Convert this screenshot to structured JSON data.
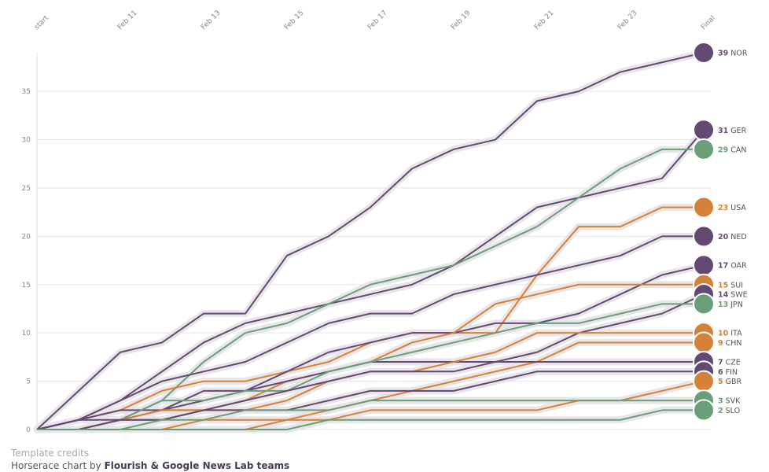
{
  "chart_data": {
    "type": "line",
    "categories": [
      "start",
      null,
      "Feb 11",
      null,
      "Feb 13",
      null,
      "Feb 15",
      null,
      "Feb 17",
      null,
      "Feb 19",
      null,
      "Feb 21",
      null,
      "Feb 23",
      null,
      "Final"
    ],
    "ylim": [
      0,
      39
    ],
    "yticks": [
      0,
      5,
      10,
      15,
      20,
      25,
      30,
      35
    ],
    "grid": true,
    "series": [
      {
        "name": "NOR",
        "color": "#634a73",
        "values": [
          0,
          4,
          8,
          9,
          12,
          12,
          18,
          20,
          23,
          27,
          29,
          30,
          34,
          35,
          37,
          38,
          39
        ]
      },
      {
        "name": "GER",
        "color": "#634a73",
        "values": [
          0,
          1,
          3,
          6,
          9,
          11,
          12,
          13,
          14,
          15,
          17,
          20,
          23,
          24,
          25,
          26,
          31
        ]
      },
      {
        "name": "CAN",
        "color": "#6a9e78",
        "values": [
          0,
          0,
          1,
          3,
          7,
          10,
          11,
          13,
          15,
          16,
          17,
          19,
          21,
          24,
          27,
          29,
          29
        ]
      },
      {
        "name": "USA",
        "color": "#d4813a",
        "values": [
          0,
          1,
          2,
          4,
          5,
          5,
          6,
          7,
          9,
          10,
          10,
          10,
          16,
          21,
          21,
          23,
          23
        ]
      },
      {
        "name": "NED",
        "color": "#634a73",
        "values": [
          0,
          1,
          3,
          5,
          6,
          7,
          9,
          11,
          12,
          12,
          14,
          15,
          16,
          17,
          18,
          20,
          20
        ]
      },
      {
        "name": "OAR",
        "color": "#634a73",
        "values": [
          0,
          0,
          1,
          2,
          3,
          4,
          6,
          8,
          9,
          10,
          10,
          11,
          11,
          12,
          14,
          16,
          17
        ]
      },
      {
        "name": "SUI",
        "color": "#d4813a",
        "values": [
          0,
          0,
          1,
          2,
          2,
          3,
          5,
          6,
          7,
          9,
          10,
          13,
          14,
          15,
          15,
          15,
          15
        ]
      },
      {
        "name": "SWE",
        "color": "#634a73",
        "values": [
          0,
          1,
          2,
          2,
          4,
          4,
          5,
          6,
          7,
          7,
          7,
          7,
          8,
          10,
          11,
          12,
          14
        ]
      },
      {
        "name": "JPN",
        "color": "#6a9e78",
        "values": [
          0,
          0,
          1,
          3,
          3,
          4,
          4,
          6,
          7,
          8,
          9,
          10,
          11,
          11,
          12,
          13,
          13
        ]
      },
      {
        "name": "ITA",
        "color": "#d4813a",
        "values": [
          0,
          0,
          1,
          2,
          2,
          2,
          3,
          5,
          6,
          6,
          7,
          8,
          10,
          10,
          10,
          10,
          10
        ]
      },
      {
        "name": "CHN",
        "color": "#d4813a",
        "values": [
          0,
          0,
          0,
          0,
          1,
          1,
          1,
          2,
          3,
          4,
          5,
          6,
          7,
          9,
          9,
          9,
          9
        ]
      },
      {
        "name": "CZE",
        "color": "#634a73",
        "values": [
          0,
          0,
          1,
          1,
          2,
          3,
          4,
          5,
          6,
          6,
          6,
          7,
          7,
          7,
          7,
          7,
          7
        ]
      },
      {
        "name": "FIN",
        "color": "#634a73",
        "values": [
          0,
          1,
          1,
          1,
          2,
          2,
          2,
          3,
          4,
          4,
          4,
          5,
          6,
          6,
          6,
          6,
          6
        ]
      },
      {
        "name": "GBR",
        "color": "#d4813a",
        "values": [
          0,
          0,
          0,
          0,
          0,
          0,
          1,
          1,
          2,
          2,
          2,
          2,
          2,
          3,
          3,
          4,
          5
        ]
      },
      {
        "name": "SVK",
        "color": "#6a9e78",
        "values": [
          0,
          0,
          0,
          1,
          1,
          2,
          2,
          2,
          3,
          3,
          3,
          3,
          3,
          3,
          3,
          3,
          3
        ]
      },
      {
        "name": "SLO",
        "color": "#6a9e78",
        "values": [
          0,
          0,
          0,
          0,
          0,
          0,
          0,
          1,
          1,
          1,
          1,
          1,
          1,
          1,
          1,
          2,
          2
        ]
      }
    ],
    "credit_label": "Template credits",
    "credit_text": "Horserace chart by",
    "credit_author": "Flourish & Google News Lab teams"
  }
}
